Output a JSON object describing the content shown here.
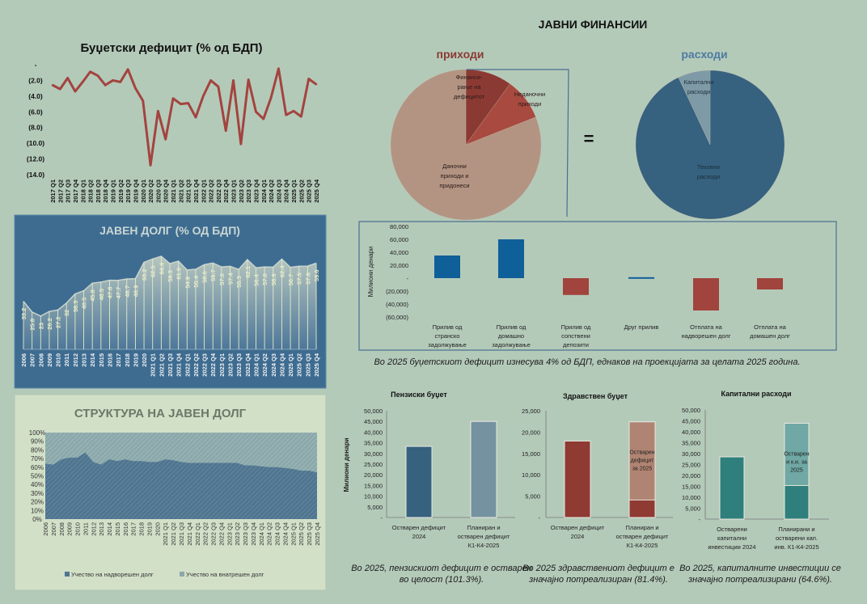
{
  "header": {
    "title": "ЈАВНИ ФИНАНСИИ"
  },
  "colors": {
    "background": "#b4cab9",
    "deficit_line": "#a3443f",
    "debt_panel": "#3e6c91",
    "structure_panel": "#d2e0c8",
    "inflow": "#0f5f99",
    "outflow": "#a0443d",
    "pension": "#36617f",
    "pension_plan": "#7592a0",
    "health": "#8f3a33",
    "health_plan": "#b08472",
    "capital": "#2f7f7c",
    "capital_plan": "#6fa8a4"
  },
  "chart_data": [
    {
      "id": "deficit",
      "type": "line",
      "title": "Буџетски дефицит (% од БДП)",
      "xlabel": "",
      "ylabel": "",
      "ylim": [
        -14,
        0
      ],
      "ytick_values": [
        0,
        -2,
        -4,
        -6,
        -8,
        -10,
        -12,
        -14
      ],
      "ytick_labels": [
        "-",
        "(2.0)",
        "(4.0)",
        "(6.0)",
        "(8.0)",
        "(10.0)",
        "(12.0)",
        "(14.0)"
      ],
      "categories": [
        "2017 Q1",
        "2017 Q2",
        "2017 Q3",
        "2017 Q4",
        "2018 Q1",
        "2018 Q2",
        "2018 Q3",
        "2018 Q4",
        "2019 Q1",
        "2019 Q2",
        "2019 Q3",
        "2019 Q4",
        "2020 Q1",
        "2020 Q2",
        "2020 Q3",
        "2020 Q4",
        "2021 Q1",
        "2021 Q2",
        "2021 Q3",
        "2021 Q4",
        "2022 Q1",
        "2022 Q2",
        "2022 Q3",
        "2022 Q4",
        "2023 Q1",
        "2023 Q2",
        "2023 Q3",
        "2023 Q4",
        "2024 Q1",
        "2024 Q2",
        "2024 Q3",
        "2024 Q4",
        "2025 Q1",
        "2025 Q2",
        "2025 Q3",
        "2025 Q4"
      ],
      "values": [
        -2.6,
        -3.1,
        -1.7,
        -3.4,
        -2.2,
        -0.9,
        -1.4,
        -2.6,
        -2.0,
        -2.2,
        -0.6,
        -3.0,
        -4.6,
        -12.8,
        -5.9,
        -9.5,
        -4.3,
        -5.0,
        -4.9,
        -6.7,
        -4.0,
        -2.0,
        -2.8,
        -8.4,
        -2.0,
        -10.1,
        -1.9,
        -6.0,
        -6.9,
        -4.2,
        -0.5,
        -6.4,
        -5.9,
        -6.6,
        -1.8,
        -2.5
      ],
      "grid": false
    },
    {
      "id": "debt",
      "type": "area",
      "title": "ЈАВЕН ДОЛГ (% ОД БДП)",
      "categories": [
        "2006",
        "2007",
        "2008",
        "2009",
        "2010",
        "2011",
        "2012",
        "2013",
        "2014",
        "2015",
        "2016",
        "2017",
        "2018",
        "2019",
        "2020",
        "2021 Q1",
        "2021 Q2",
        "2021 Q3",
        "2021 Q4",
        "2022 Q1",
        "2022 Q2",
        "2022 Q3",
        "2022 Q4",
        "2023 Q1",
        "2023 Q2",
        "2023 Q3",
        "2023 Q4",
        "2024 Q1",
        "2024 Q2",
        "2024 Q3",
        "2024 Q4",
        "2025 Q1",
        "2025 Q2",
        "2025 Q3",
        "2025 Q4"
      ],
      "values": [
        33.2,
        25.8,
        23,
        26.2,
        27.2,
        32,
        38.3,
        40.5,
        45.8,
        46.5,
        47.8,
        47.7,
        48.7,
        48.9,
        60.2,
        62.5,
        64.4,
        59.3,
        61.0,
        54.9,
        55.4,
        58.6,
        59.7,
        57.0,
        57.4,
        55.3,
        62.1,
        56.4,
        57.0,
        56.9,
        62.4,
        56.7,
        57.5,
        57.6,
        59.6
      ],
      "data_labels": [
        "33.2",
        "25.8",
        "23",
        "26.2",
        "27.2",
        "32",
        "38.3",
        "40.5",
        "45.8",
        "46.5",
        "47.8",
        "47.7",
        "48.7",
        "48.9",
        "60.2",
        "62.5",
        "64.4",
        "59.3",
        "61.0",
        "54.9",
        "55.4",
        "58.6",
        "59.7",
        "57.0",
        "57.4",
        "55.3",
        "62.1",
        "56.4",
        "57.0",
        "56.9",
        "62.4",
        "56.7",
        "57.5",
        "57.6",
        "59.6"
      ],
      "grid": false
    },
    {
      "id": "structure",
      "type": "area",
      "stacked": "percent",
      "title": "СТРУКТУРА НА ЈАВЕН ДОЛГ",
      "ylim": [
        0,
        100
      ],
      "ytick_labels": [
        "0%",
        "10%",
        "20%",
        "30%",
        "40%",
        "50%",
        "60%",
        "70%",
        "80%",
        "90%",
        "100%"
      ],
      "categories": [
        "2006",
        "2007",
        "2008",
        "2009",
        "2010",
        "2011",
        "2012",
        "2013",
        "2014",
        "2015",
        "2016",
        "2017",
        "2018",
        "2019",
        "2020",
        "2021 Q1",
        "2021 Q2",
        "2021 Q3",
        "2021 Q4",
        "2022 Q1",
        "2022 Q2",
        "2022 Q3",
        "2022 Q4",
        "2023 Q1",
        "2023 Q2",
        "2023 Q3",
        "2023 Q4",
        "2024 Q1",
        "2024 Q2",
        "2024 Q3",
        "2024 Q4",
        "2025 Q1",
        "2025 Q2",
        "2025 Q3",
        "2025 Q4"
      ],
      "series": [
        {
          "name": "Учество на надворешен долг",
          "color": "#4f7590",
          "values": [
            64,
            63,
            69,
            71,
            71,
            77,
            66,
            63,
            69,
            67,
            69,
            67,
            67,
            66,
            66,
            69,
            68,
            66,
            65,
            65,
            65,
            65,
            65,
            65,
            65,
            62,
            62,
            61,
            60,
            60,
            59,
            58,
            56,
            56,
            54
          ]
        },
        {
          "name": "Учество на внатрешен долг",
          "color": "#8ba8ab",
          "values": [
            36,
            37,
            31,
            29,
            29,
            23,
            34,
            37,
            31,
            33,
            31,
            33,
            33,
            34,
            34,
            31,
            32,
            34,
            35,
            35,
            35,
            35,
            35,
            35,
            35,
            38,
            38,
            39,
            40,
            40,
            41,
            42,
            44,
            44,
            46
          ]
        }
      ],
      "legend": "bottom",
      "grid": false
    },
    {
      "id": "revenues",
      "type": "pie",
      "title": "приходи",
      "labels": [
        [
          "Финанси-",
          "рање на",
          "дефицитот"
        ],
        [
          "Неданочни",
          "приходи"
        ],
        [
          "Даночни",
          "приходи и",
          "придонеси"
        ]
      ],
      "values": [
        10,
        9,
        81
      ],
      "colors": [
        "#8b3a33",
        "#a84a40",
        "#b39482"
      ]
    },
    {
      "id": "expenses",
      "type": "pie",
      "title": "расходи",
      "labels": [
        [
          "Тековни",
          "расходи"
        ],
        [
          "Капитални",
          "расходи"
        ]
      ],
      "values": [
        93,
        7
      ],
      "colors": [
        "#36617f",
        "#7d9aa6"
      ]
    },
    {
      "id": "financing",
      "type": "bar",
      "ylabel": "Милиони денари",
      "ylim": [
        -60000,
        80000
      ],
      "ytick_labels": [
        "(60,000)",
        "(40,000)",
        "(20,000)",
        "-",
        "20,000",
        "40,000",
        "60,000",
        "80,000"
      ],
      "categories": [
        [
          "Прилив од",
          "странско",
          "задолжување"
        ],
        [
          "Прилив од",
          "домашно",
          "задолжување"
        ],
        [
          "Прилив од",
          "сопствени",
          "депозити"
        ],
        [
          "Друг прилив"
        ],
        [
          "Отплата на",
          "надворешен долг"
        ],
        [
          "Отплата на",
          "домашен долг"
        ]
      ],
      "values": [
        35000,
        60000,
        -26000,
        1500,
        -50000,
        -17500
      ]
    },
    {
      "id": "pension",
      "type": "bar",
      "title": "Пензиски буџет",
      "ylabel": "Милиони денари",
      "ylim": [
        0,
        50000
      ],
      "ytick_labels": [
        "-",
        "5,000",
        "10,000",
        "15,000",
        "20,000",
        "25,000",
        "30,000",
        "35,000",
        "40,000",
        "45,000",
        "50,000"
      ],
      "categories": [
        [
          "Остварен дефицит",
          "2024"
        ],
        [
          "Планиран и",
          "остварен дефицит",
          "К1-К4-2025"
        ]
      ],
      "values": [
        33300,
        45000
      ]
    },
    {
      "id": "health",
      "type": "bar",
      "title": "Здравствен буџет",
      "ylim": [
        0,
        25000
      ],
      "ytick_labels": [
        "-",
        "5,000",
        "10,000",
        "15,000",
        "20,000",
        "25,000"
      ],
      "categories": [
        [
          "Остварен дефицит",
          "2024"
        ],
        [
          "Планиран и",
          "остварен дефицит",
          "К1-К4-2025"
        ]
      ],
      "realized": [
        17900,
        4100
      ],
      "planned": [
        null,
        22400
      ],
      "annotation": [
        "Остварен",
        "дефицит",
        "за 2025"
      ]
    },
    {
      "id": "capital",
      "type": "bar",
      "title": "Капитални расходи",
      "ylim": [
        0,
        50000
      ],
      "ytick_labels": [
        "-",
        "5,000",
        "10,000",
        "15,000",
        "20,000",
        "25,000",
        "30,000",
        "35,000",
        "40,000",
        "45,000",
        "50,000"
      ],
      "categories": [
        [
          "Остварени",
          "капитални",
          "инвестиции 2024"
        ],
        [
          "Планирани и",
          "остварени кап.",
          "инв. К1-К4-2025"
        ]
      ],
      "realized": [
        28500,
        15400
      ],
      "planned": [
        null,
        43900
      ],
      "annotation": [
        "Остварен",
        "и к.и. за",
        "2025"
      ]
    }
  ],
  "equals_sign": "=",
  "captions": {
    "financing": "Во 2025 буџетскиот дефицит изнесува 4% од БДП, еднаков на проекцијата за целата 2025 година.",
    "pension": [
      "Во 2025, пензискиот дефицит е остварен",
      "во целост (101.3%)."
    ],
    "health": [
      "Во 2025 здравствениот дефицит е",
      "значајно потреализиран (81.4%)."
    ],
    "capital": [
      "Во 2025, капиталните инвестиции се",
      "значајно потреализирани (64.6%)."
    ]
  }
}
